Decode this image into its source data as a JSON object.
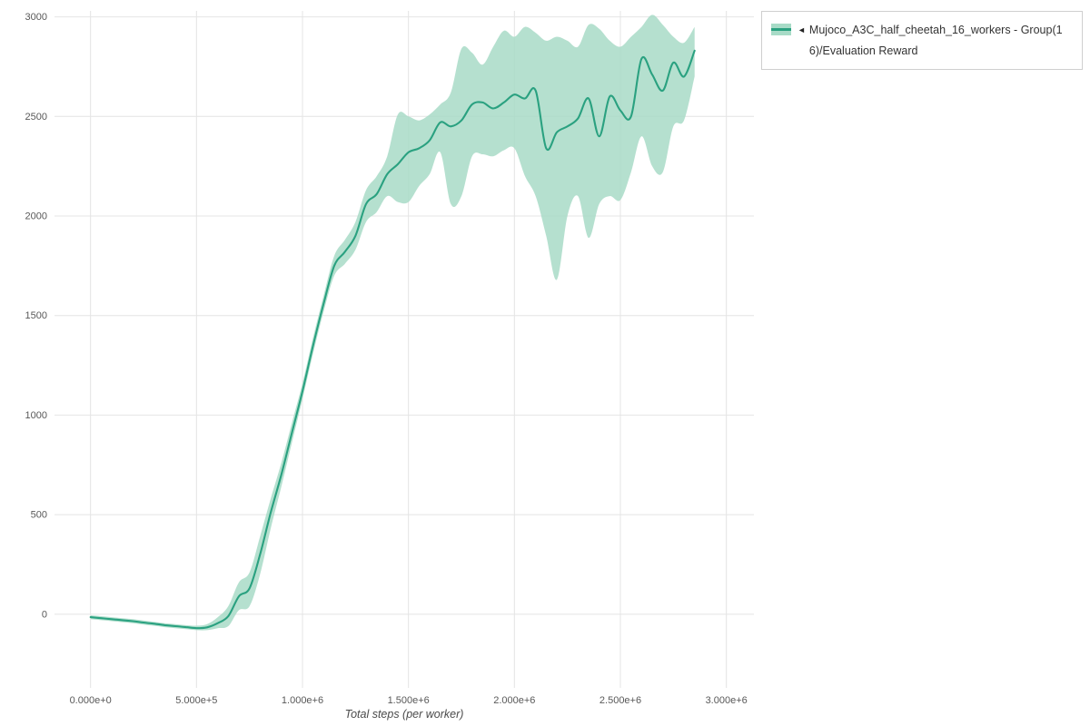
{
  "legend": {
    "toggle_icon": "◄",
    "series_label": "Mujoco_A3C_half_cheetah_16_workers - Group(16)/Evaluation Reward"
  },
  "axes": {
    "x_title": "Total steps (per worker)"
  },
  "chart_data": {
    "type": "line",
    "title": "",
    "xlabel": "Total steps (per worker)",
    "ylabel": "",
    "grid": true,
    "legend_position": "top-right",
    "x_scale": 1000000,
    "xlim": [
      -0.17,
      3.13
    ],
    "ylim": [
      -370,
      3030
    ],
    "x_ticks": [
      {
        "value": 0.0,
        "label": "0.000e+0"
      },
      {
        "value": 0.5,
        "label": "5.000e+5"
      },
      {
        "value": 1.0,
        "label": "1.000e+6"
      },
      {
        "value": 1.5,
        "label": "1.500e+6"
      },
      {
        "value": 2.0,
        "label": "2.000e+6"
      },
      {
        "value": 2.5,
        "label": "2.500e+6"
      },
      {
        "value": 3.0,
        "label": "3.000e+6"
      }
    ],
    "y_ticks": [
      {
        "value": 0,
        "label": "0"
      },
      {
        "value": 500,
        "label": "500"
      },
      {
        "value": 1000,
        "label": "1000"
      },
      {
        "value": 1500,
        "label": "1500"
      },
      {
        "value": 2000,
        "label": "2000"
      },
      {
        "value": 2500,
        "label": "2500"
      },
      {
        "value": 3000,
        "label": "3000"
      }
    ],
    "series": [
      {
        "name": "Mujoco_A3C_half_cheetah_16_workers - Group(16)/Evaluation Reward",
        "color": "#2aa180",
        "band_color": "#a8dbc7",
        "grid_color": "#e4e4e4",
        "x": [
          0.0,
          0.05,
          0.1,
          0.15,
          0.2,
          0.25,
          0.3,
          0.35,
          0.4,
          0.45,
          0.5,
          0.55,
          0.6,
          0.65,
          0.7,
          0.75,
          0.8,
          0.85,
          0.9,
          0.95,
          1.0,
          1.05,
          1.1,
          1.15,
          1.2,
          1.25,
          1.3,
          1.35,
          1.4,
          1.45,
          1.5,
          1.55,
          1.6,
          1.65,
          1.7,
          1.75,
          1.8,
          1.85,
          1.9,
          1.95,
          2.0,
          2.05,
          2.1,
          2.15,
          2.2,
          2.25,
          2.3,
          2.35,
          2.4,
          2.45,
          2.5,
          2.55,
          2.6,
          2.65,
          2.7,
          2.75,
          2.8,
          2.85
        ],
        "mean": [
          -15,
          -20,
          -25,
          -30,
          -35,
          -42,
          -48,
          -55,
          -60,
          -65,
          -70,
          -66,
          -45,
          -10,
          90,
          130,
          300,
          510,
          700,
          910,
          1120,
          1350,
          1560,
          1750,
          1820,
          1900,
          2060,
          2110,
          2210,
          2260,
          2320,
          2340,
          2380,
          2470,
          2450,
          2480,
          2560,
          2570,
          2540,
          2570,
          2610,
          2590,
          2630,
          2340,
          2420,
          2450,
          2490,
          2590,
          2400,
          2600,
          2530,
          2500,
          2790,
          2710,
          2630,
          2770,
          2700,
          2830
        ],
        "lower": [
          -25,
          -30,
          -35,
          -40,
          -45,
          -52,
          -58,
          -65,
          -70,
          -75,
          -80,
          -80,
          -70,
          -60,
          20,
          40,
          200,
          430,
          640,
          860,
          1080,
          1310,
          1520,
          1700,
          1760,
          1830,
          1970,
          2020,
          2100,
          2070,
          2070,
          2150,
          2210,
          2320,
          2060,
          2100,
          2300,
          2310,
          2300,
          2330,
          2340,
          2200,
          2100,
          1900,
          1680,
          2000,
          2100,
          1890,
          2060,
          2100,
          2080,
          2220,
          2400,
          2250,
          2220,
          2450,
          2480,
          2700
        ],
        "upper": [
          -5,
          -10,
          -15,
          -20,
          -25,
          -32,
          -38,
          -45,
          -50,
          -55,
          -58,
          -50,
          -15,
          40,
          160,
          210,
          390,
          580,
          760,
          960,
          1160,
          1390,
          1600,
          1800,
          1880,
          1970,
          2130,
          2200,
          2300,
          2510,
          2500,
          2480,
          2510,
          2560,
          2620,
          2840,
          2820,
          2760,
          2850,
          2930,
          2900,
          2950,
          2920,
          2880,
          2900,
          2880,
          2850,
          2960,
          2940,
          2880,
          2850,
          2900,
          2950,
          3010,
          2960,
          2900,
          2870,
          2950
        ]
      }
    ]
  }
}
